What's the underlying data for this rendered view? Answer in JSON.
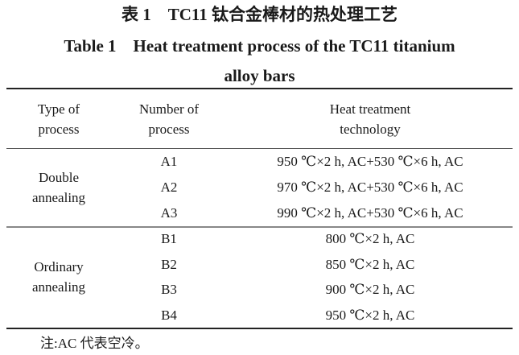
{
  "title_cn": "表 1　TC11 钛合金棒材的热处理工艺",
  "title_en_line1": "Table 1　Heat treatment process of the TC11 titanium",
  "title_en_line2": "alloy bars",
  "headers": {
    "type": [
      "Type of",
      "process"
    ],
    "number": [
      "Number of",
      "process"
    ],
    "technology": [
      "Heat treatment",
      "technology"
    ]
  },
  "groups": [
    {
      "type": [
        "Double",
        "annealing"
      ],
      "rows": [
        {
          "number": "A1",
          "technology": "950 ℃×2 h, AC+530 ℃×6 h, AC"
        },
        {
          "number": "A2",
          "technology": "970 ℃×2 h, AC+530 ℃×6 h, AC"
        },
        {
          "number": "A3",
          "technology": "990 ℃×2 h, AC+530 ℃×6 h, AC"
        }
      ]
    },
    {
      "type": [
        "Ordinary",
        "annealing"
      ],
      "rows": [
        {
          "number": "B1",
          "technology": "800 ℃×2 h, AC"
        },
        {
          "number": "B2",
          "technology": "850 ℃×2 h, AC"
        },
        {
          "number": "B3",
          "technology": "900 ℃×2 h, AC"
        },
        {
          "number": "B4",
          "technology": "950 ℃×2 h, AC"
        }
      ]
    }
  ],
  "note": "注:AC 代表空冷。"
}
